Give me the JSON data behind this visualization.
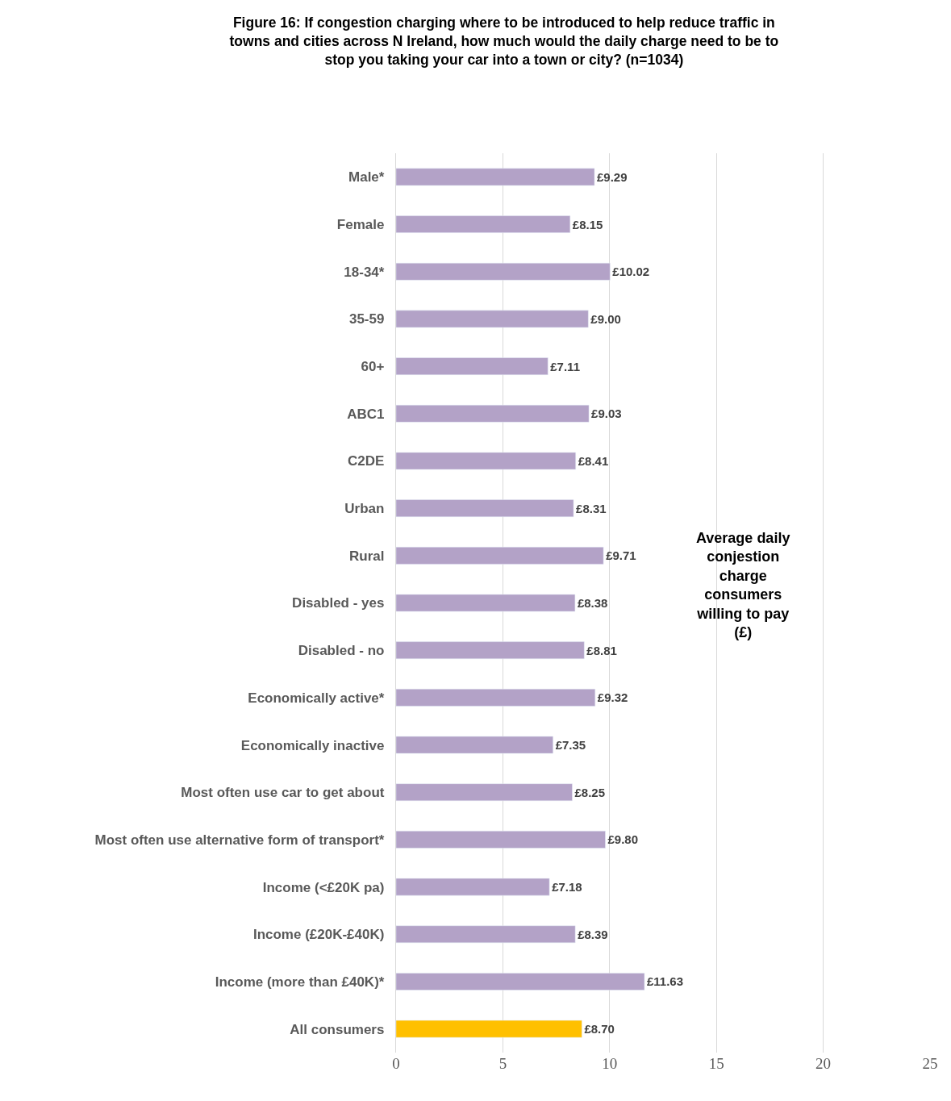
{
  "chart_data": {
    "type": "bar",
    "orientation": "horizontal",
    "title": "Figure 16: If congestion charging where to be introduced to help reduce traffic in towns and cities across N Ireland, how much would the daily charge need to be to stop you taking your car into a town or city? (n=1034)",
    "categories": [
      "Male*",
      "Female",
      "18-34*",
      "35-59",
      "60+",
      "ABC1",
      "C2DE",
      "Urban",
      "Rural",
      "Disabled - yes",
      "Disabled - no",
      "Economically active*",
      "Economically inactive",
      "Most often use car to get about",
      "Most often use alternative form of transport*",
      "Income (<£20K pa)",
      "Income (£20K-£40K)",
      "Income (more than £40K)*",
      "All consumers"
    ],
    "values": [
      9.29,
      8.15,
      10.02,
      9.0,
      7.11,
      9.03,
      8.41,
      8.31,
      9.71,
      8.38,
      8.81,
      9.32,
      7.35,
      8.25,
      9.8,
      7.18,
      8.39,
      11.63,
      8.7
    ],
    "value_labels": [
      "£9.29",
      "£8.15",
      "£10.02",
      "£9.00",
      "£7.11",
      "£9.03",
      "£8.41",
      "£8.31",
      "£9.71",
      "£8.38",
      "£8.81",
      "£9.32",
      "£7.35",
      "£8.25",
      "£9.80",
      "£7.18",
      "£8.39",
      "£11.63",
      "£8.70"
    ],
    "colors": [
      "#b3a2c7",
      "#b3a2c7",
      "#b3a2c7",
      "#b3a2c7",
      "#b3a2c7",
      "#b3a2c7",
      "#b3a2c7",
      "#b3a2c7",
      "#b3a2c7",
      "#b3a2c7",
      "#b3a2c7",
      "#b3a2c7",
      "#b3a2c7",
      "#b3a2c7",
      "#b3a2c7",
      "#b3a2c7",
      "#b3a2c7",
      "#b3a2c7",
      "#ffc000"
    ],
    "xlim": [
      0,
      25
    ],
    "xticks": [
      0,
      5,
      10,
      15,
      20,
      25
    ],
    "grid": "x",
    "annotations": [
      "Average daily conjestion charge consumers willing to pay (£)"
    ]
  }
}
